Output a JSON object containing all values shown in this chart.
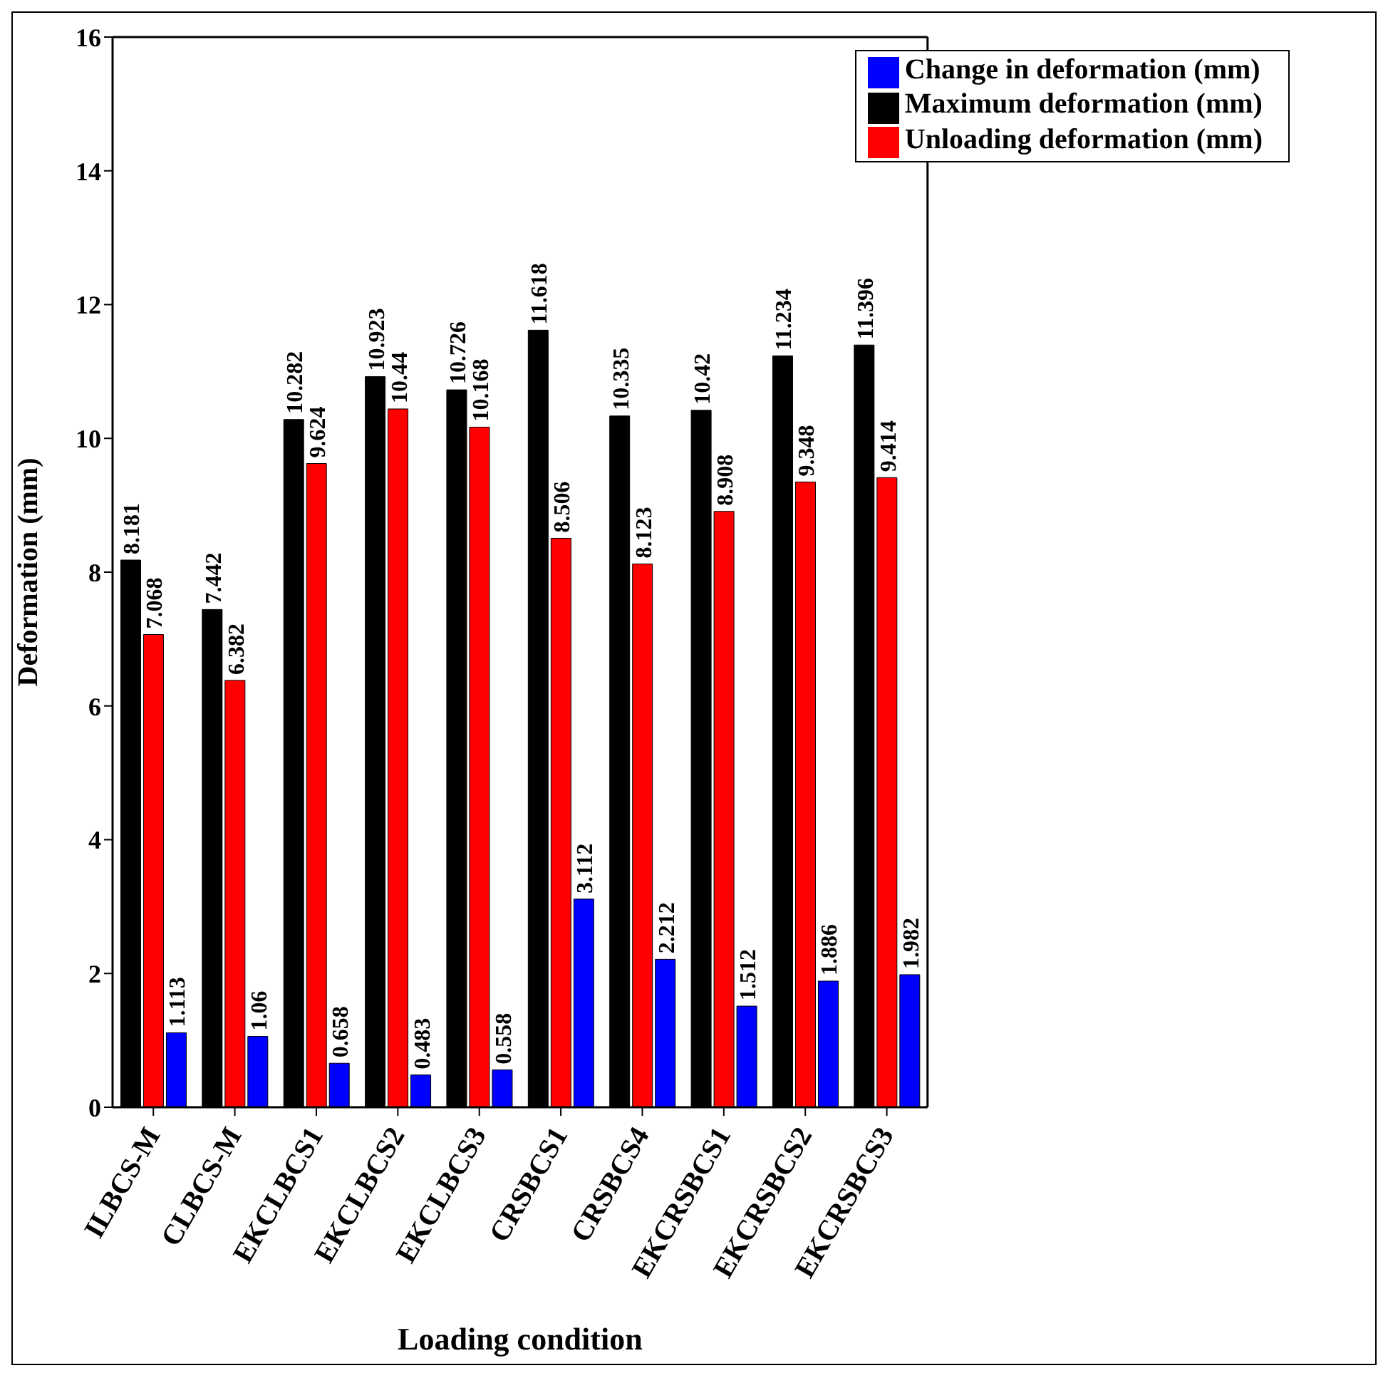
{
  "chart_data": {
    "type": "bar",
    "xlabel": "Loading condition",
    "ylabel": "Deformation (mm)",
    "categories": [
      "ILBCS-M",
      "CLBCS-M",
      "EKCLBCS1",
      "EKCLBCS2",
      "EKCLBCS3",
      "CRSBCS1",
      "CRSBCS4",
      "EKCRSBCS1",
      "EKCRSBCS2",
      "EKCRSBCS3"
    ],
    "series": [
      {
        "name": "Maximum deformation (mm)",
        "color": "#000000",
        "values": [
          8.181,
          7.442,
          10.282,
          10.923,
          10.726,
          11.618,
          10.335,
          10.42,
          11.234,
          11.396
        ]
      },
      {
        "name": "Unloading deformation (mm)",
        "color": "#ff0000",
        "values": [
          7.068,
          6.382,
          9.624,
          10.44,
          10.168,
          8.506,
          8.123,
          8.908,
          9.348,
          9.414
        ]
      },
      {
        "name": "Change in deformation (mm)",
        "color": "#0000ff",
        "values": [
          1.113,
          1.06,
          0.658,
          0.483,
          0.558,
          3.112,
          2.212,
          1.512,
          1.886,
          1.982
        ]
      }
    ],
    "ylim": [
      0,
      16
    ],
    "yticks": [
      0,
      2,
      4,
      6,
      8,
      10,
      12,
      14,
      16
    ],
    "grid": false,
    "legend": "top right",
    "data_labels": true
  }
}
